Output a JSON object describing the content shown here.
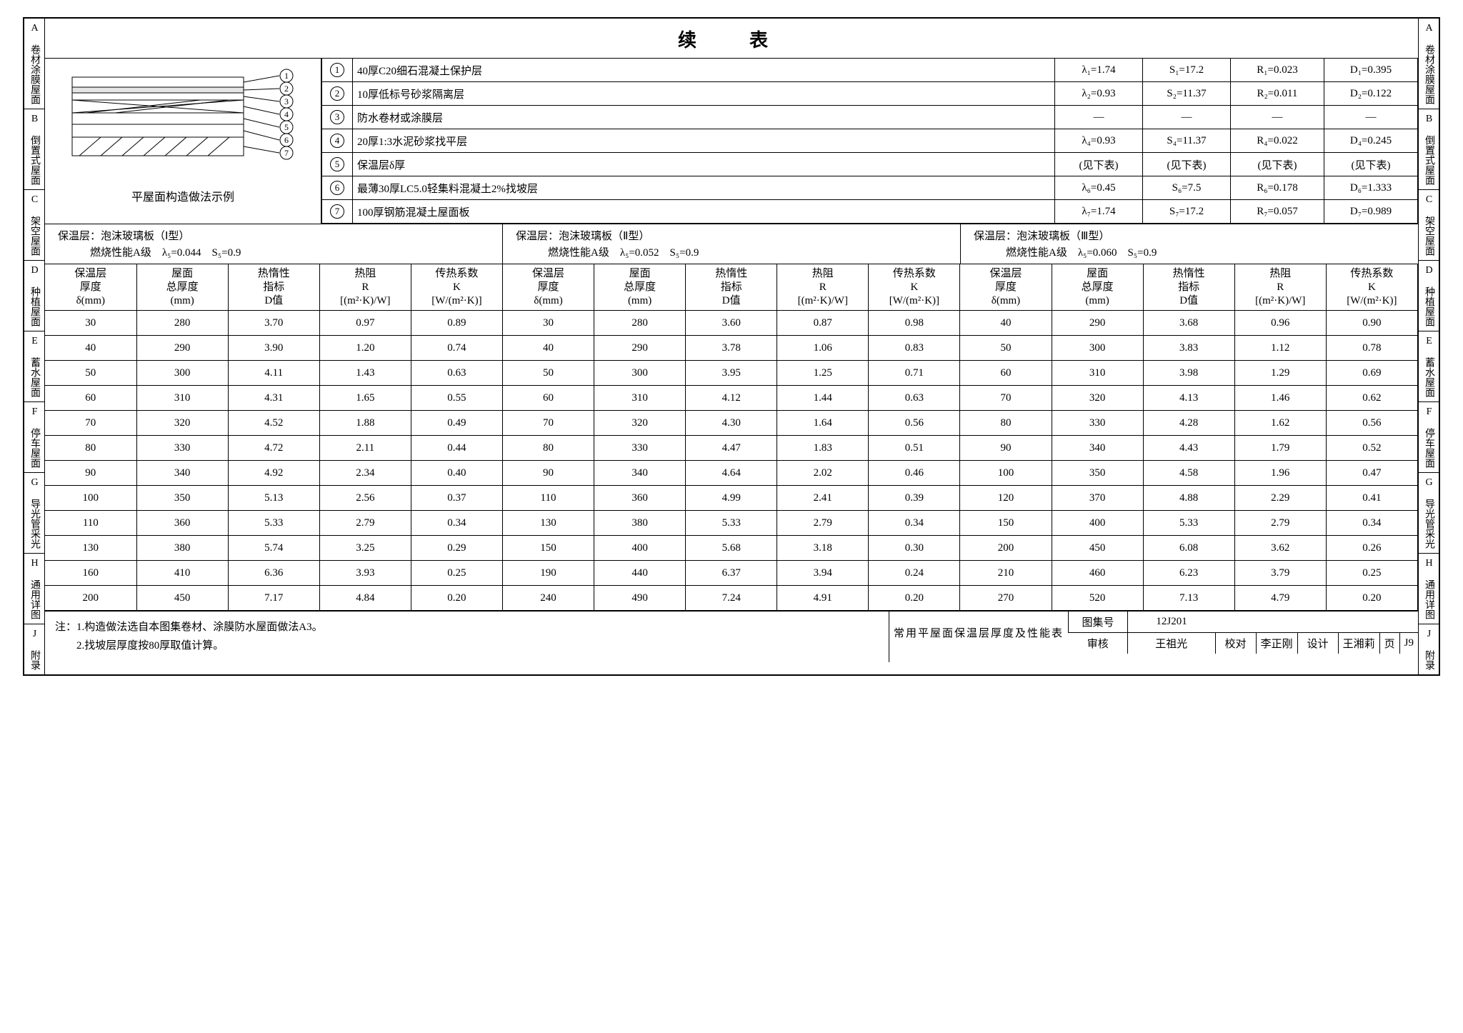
{
  "side_index": [
    {
      "key": "A",
      "label": "卷材涂膜屋面"
    },
    {
      "key": "B",
      "label": "倒置式屋面"
    },
    {
      "key": "C",
      "label": "架空屋面"
    },
    {
      "key": "D",
      "label": "种植屋面"
    },
    {
      "key": "E",
      "label": "蓄水屋面"
    },
    {
      "key": "F",
      "label": "停车屋面"
    },
    {
      "key": "G",
      "label": "导光管采光"
    },
    {
      "key": "H",
      "label": "通用详图"
    },
    {
      "key": "J",
      "label": "附录"
    }
  ],
  "title": "续　表",
  "diagram_caption": "平屋面构造做法示例",
  "layers": {
    "col_widths": [
      "30px",
      "auto",
      "110px",
      "110px",
      "118px",
      "118px"
    ],
    "rows": [
      {
        "n": "①",
        "desc": "40厚C20细石混凝土保护层",
        "l": "λ₁=1.74",
        "s": "S₁=17.2",
        "r": "R₁=0.023",
        "d": "D₁=0.395"
      },
      {
        "n": "②",
        "desc": "10厚低标号砂浆隔离层",
        "l": "λ₂=0.93",
        "s": "S₂=11.37",
        "r": "R₂=0.011",
        "d": "D₂=0.122"
      },
      {
        "n": "③",
        "desc": "防水卷材或涂膜层",
        "l": "—",
        "s": "—",
        "r": "—",
        "d": "—"
      },
      {
        "n": "④",
        "desc": "20厚1:3水泥砂浆找平层",
        "l": "λ₄=0.93",
        "s": "S₄=11.37",
        "r": "R₄=0.022",
        "d": "D₄=0.245"
      },
      {
        "n": "⑤",
        "desc": "保温层δ厚",
        "l": "(见下表)",
        "s": "(见下表)",
        "r": "(见下表)",
        "d": "(见下表)"
      },
      {
        "n": "⑥",
        "desc": "最薄30厚LC5.0轻集料混凝土2%找坡层",
        "l": "λ₆=0.45",
        "s": "S₆=7.5",
        "r": "R₆=0.178",
        "d": "D₆=1.333"
      },
      {
        "n": "⑦",
        "desc": "100厚钢筋混凝土屋面板",
        "l": "λ₇=1.74",
        "s": "S₇=17.2",
        "r": "R₇=0.057",
        "d": "D₇=0.989"
      }
    ]
  },
  "sections": [
    {
      "h1": "保温层：泡沫玻璃板（Ⅰ型）",
      "h2": "燃烧性能A级　λ₅=0.044　S₅=0.9"
    },
    {
      "h1": "保温层：泡沫玻璃板（Ⅱ型）",
      "h2": "燃烧性能A级　λ₅=0.052　S₅=0.9"
    },
    {
      "h1": "保温层：泡沫玻璃板（Ⅲ型）",
      "h2": "燃烧性能A级　λ₅=0.060　S₅=0.9"
    }
  ],
  "data_headers": [
    "保温层<br>厚度<br>δ(mm)",
    "屋面<br>总厚度<br>(mm)",
    "热惰性<br>指标<br>D值",
    "热阻<br>R<br>[(m²·K)/W]",
    "传热系数<br>K<br>[W/(m²·K)]"
  ],
  "data_rows": [
    [
      "30",
      "280",
      "3.70",
      "0.97",
      "0.89",
      "30",
      "280",
      "3.60",
      "0.87",
      "0.98",
      "40",
      "290",
      "3.68",
      "0.96",
      "0.90"
    ],
    [
      "40",
      "290",
      "3.90",
      "1.20",
      "0.74",
      "40",
      "290",
      "3.78",
      "1.06",
      "0.83",
      "50",
      "300",
      "3.83",
      "1.12",
      "0.78"
    ],
    [
      "50",
      "300",
      "4.11",
      "1.43",
      "0.63",
      "50",
      "300",
      "3.95",
      "1.25",
      "0.71",
      "60",
      "310",
      "3.98",
      "1.29",
      "0.69"
    ],
    [
      "60",
      "310",
      "4.31",
      "1.65",
      "0.55",
      "60",
      "310",
      "4.12",
      "1.44",
      "0.63",
      "70",
      "320",
      "4.13",
      "1.46",
      "0.62"
    ],
    [
      "70",
      "320",
      "4.52",
      "1.88",
      "0.49",
      "70",
      "320",
      "4.30",
      "1.64",
      "0.56",
      "80",
      "330",
      "4.28",
      "1.62",
      "0.56"
    ],
    [
      "80",
      "330",
      "4.72",
      "2.11",
      "0.44",
      "80",
      "330",
      "4.47",
      "1.83",
      "0.51",
      "90",
      "340",
      "4.43",
      "1.79",
      "0.52"
    ],
    [
      "90",
      "340",
      "4.92",
      "2.34",
      "0.40",
      "90",
      "340",
      "4.64",
      "2.02",
      "0.46",
      "100",
      "350",
      "4.58",
      "1.96",
      "0.47"
    ],
    [
      "100",
      "350",
      "5.13",
      "2.56",
      "0.37",
      "110",
      "360",
      "4.99",
      "2.41",
      "0.39",
      "120",
      "370",
      "4.88",
      "2.29",
      "0.41"
    ],
    [
      "110",
      "360",
      "5.33",
      "2.79",
      "0.34",
      "130",
      "380",
      "5.33",
      "2.79",
      "0.34",
      "150",
      "400",
      "5.33",
      "2.79",
      "0.34"
    ],
    [
      "130",
      "380",
      "5.74",
      "3.25",
      "0.29",
      "150",
      "400",
      "5.68",
      "3.18",
      "0.30",
      "200",
      "450",
      "6.08",
      "3.62",
      "0.26"
    ],
    [
      "160",
      "410",
      "6.36",
      "3.93",
      "0.25",
      "190",
      "440",
      "6.37",
      "3.94",
      "0.24",
      "210",
      "460",
      "6.23",
      "3.79",
      "0.25"
    ],
    [
      "200",
      "450",
      "7.17",
      "4.84",
      "0.20",
      "240",
      "490",
      "7.24",
      "4.91",
      "0.20",
      "270",
      "520",
      "7.13",
      "4.79",
      "0.20"
    ]
  ],
  "notes": {
    "prefix": "注：",
    "items": [
      "1.构造做法选自本图集卷材、涂膜防水屋面做法A3。",
      "2.找坡层厚度按80厚取值计算。"
    ]
  },
  "title_block": {
    "main": "常用平屋面保温层厚度及性能表",
    "album_label": "图集号",
    "album_no": "12J201",
    "review_l": "审核",
    "review_v": "王祖光",
    "check_l": "校对",
    "check_v": "李正刚",
    "design_l": "设计",
    "design_v": "王湘莉",
    "page_l": "页",
    "page_v": "J9"
  },
  "colors": {
    "line": "#000000",
    "bg": "#ffffff"
  }
}
